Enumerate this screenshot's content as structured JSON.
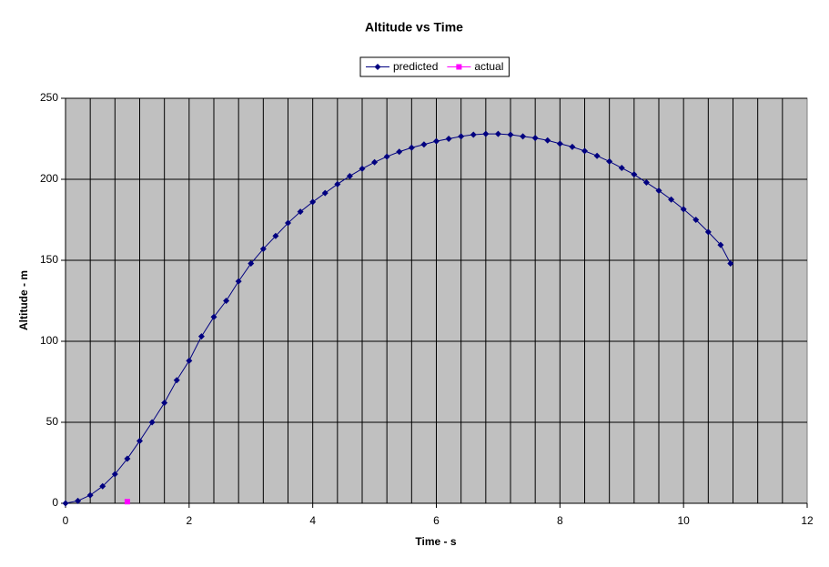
{
  "chart_data": {
    "type": "line",
    "title": "Altitude vs Time",
    "x_label": "Time - s",
    "y_label": "Altitude - m",
    "xlim": [
      0,
      12
    ],
    "xticks": [
      0,
      2,
      4,
      6,
      8,
      10,
      12
    ],
    "xgrid_interval": 0.4,
    "ylim": [
      0,
      250
    ],
    "yticks": [
      0,
      50,
      100,
      150,
      200,
      250
    ],
    "grid": true,
    "legend": "top",
    "plot_background": "#c0c0c0",
    "series": [
      {
        "name": "predicted",
        "color": "#000080",
        "marker": "diamond",
        "x": [
          0,
          0.2,
          0.4,
          0.6,
          0.8,
          1.0,
          1.2,
          1.4,
          1.6,
          1.8,
          2.0,
          2.2,
          2.4,
          2.6,
          2.8,
          3.0,
          3.2,
          3.4,
          3.6,
          3.8,
          4.0,
          4.2,
          4.4,
          4.6,
          4.8,
          5.0,
          5.2,
          5.4,
          5.6,
          5.8,
          6.0,
          6.2,
          6.4,
          6.6,
          6.8,
          7.0,
          7.2,
          7.4,
          7.6,
          7.8,
          8.0,
          8.2,
          8.4,
          8.6,
          8.8,
          9.0,
          9.2,
          9.4,
          9.6,
          9.8,
          10.0,
          10.2,
          10.4,
          10.6,
          10.76
        ],
        "values": [
          0,
          1.5,
          5,
          10.5,
          18,
          27.5,
          38.5,
          50,
          62,
          76,
          88,
          103,
          115,
          125,
          137,
          148,
          157,
          165,
          173,
          180,
          186,
          191.5,
          197,
          202,
          206.5,
          210.5,
          214,
          217,
          219.5,
          221.5,
          223.5,
          225,
          226.5,
          227.5,
          228,
          228,
          227.5,
          226.5,
          225.5,
          224,
          222,
          220,
          217.5,
          214.5,
          211,
          207,
          203,
          198,
          193,
          187.5,
          181.5,
          175,
          167.5,
          159.5,
          148
        ]
      },
      {
        "name": "actual",
        "color": "#ff00ff",
        "marker": "square",
        "x": [
          1.0
        ],
        "values": [
          1
        ]
      }
    ]
  }
}
